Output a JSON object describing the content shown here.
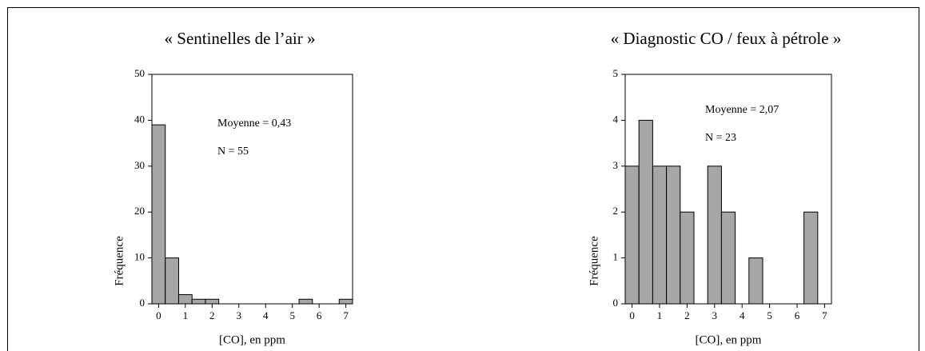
{
  "chart_data": [
    {
      "type": "histogram",
      "title": "« Sentinelles de l’air »",
      "x_label": "[CO], en ppm",
      "y_label": "Fréquence",
      "annotations": [
        "Moyenne = 0,43",
        "N = 55"
      ],
      "bins": [
        -0.25,
        0.25,
        0.75,
        1.25,
        1.75,
        2.25,
        2.75,
        3.25,
        3.75,
        4.25,
        4.75,
        5.25,
        5.75,
        6.25,
        6.75,
        7.25
      ],
      "values": [
        39,
        10,
        2,
        1,
        1,
        0,
        0,
        0,
        0,
        0,
        0,
        1,
        0,
        0,
        1
      ],
      "color": "#a6a6a6",
      "xlim": [
        -0.25,
        7.25
      ],
      "xticks": [
        0,
        1,
        2,
        3,
        4,
        5,
        6,
        7
      ],
      "ylim": [
        0,
        50
      ],
      "yticks": [
        0,
        10,
        20,
        30,
        40,
        50
      ]
    },
    {
      "type": "histogram",
      "title": "« Diagnostic CO / feux à pétrole »",
      "x_label": "[CO], en ppm",
      "y_label": "Fréquence",
      "annotations": [
        "Moyenne = 2,07",
        "N = 23"
      ],
      "bins": [
        -0.25,
        0.25,
        0.75,
        1.25,
        1.75,
        2.25,
        2.75,
        3.25,
        3.75,
        4.25,
        4.75,
        5.25,
        5.75,
        6.25,
        6.75,
        7.25
      ],
      "values": [
        3,
        4,
        3,
        3,
        2,
        0,
        3,
        2,
        0,
        1,
        0,
        0,
        0,
        2,
        0
      ],
      "color": "#a6a6a6",
      "xlim": [
        -0.25,
        7.25
      ],
      "xticks": [
        0,
        1,
        2,
        3,
        4,
        5,
        6,
        7
      ],
      "ylim": [
        0,
        5
      ],
      "yticks": [
        0,
        1,
        2,
        3,
        4,
        5
      ]
    }
  ]
}
